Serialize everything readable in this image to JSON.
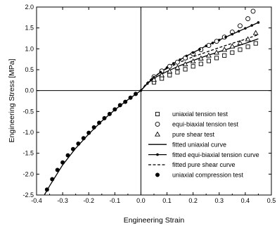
{
  "chart_data": {
    "type": "scatter",
    "title": "",
    "xlabel": "Engineering Strain",
    "ylabel": "Engineering Stress [MPa]",
    "xlim": [
      -0.4,
      0.5
    ],
    "ylim": [
      -2.5,
      2.0
    ],
    "xticks": [
      -0.4,
      -0.3,
      -0.2,
      -0.1,
      0.0,
      0.1,
      0.2,
      0.3,
      0.4,
      0.5
    ],
    "xtick_labels": [
      "-0.4",
      "-0.3",
      "-0.2",
      "-0.1",
      "0.0",
      "0.1",
      "0.2",
      "0.3",
      "0.4",
      "0.5"
    ],
    "yticks": [
      -2.5,
      -2.0,
      -1.5,
      -1.0,
      -0.5,
      0.0,
      0.5,
      1.0,
      1.5,
      2.0
    ],
    "ytick_labels": [
      "-2.5",
      "-2.0",
      "-1.5",
      "-1.0",
      "-0.5",
      "0.0",
      "0.5",
      "1.0",
      "1.5",
      "2.0"
    ],
    "grid": false,
    "legend_position": "bottom-right",
    "series": [
      {
        "name": "uniaxial tension test",
        "kind": "markers",
        "marker": "open-square",
        "color": "#000000",
        "x": [
          0.05,
          0.08,
          0.11,
          0.14,
          0.17,
          0.2,
          0.23,
          0.26,
          0.29,
          0.32,
          0.35,
          0.38,
          0.41,
          0.44
        ],
        "y": [
          0.2,
          0.29,
          0.37,
          0.44,
          0.51,
          0.58,
          0.64,
          0.71,
          0.78,
          0.84,
          0.91,
          0.98,
          1.05,
          1.13
        ]
      },
      {
        "name": "equi-biaxial tension test",
        "kind": "markers",
        "marker": "open-circle",
        "color": "#000000",
        "x": [
          0.05,
          0.08,
          0.11,
          0.14,
          0.17,
          0.2,
          0.23,
          0.26,
          0.29,
          0.32,
          0.35,
          0.38,
          0.41,
          0.43
        ],
        "y": [
          0.33,
          0.47,
          0.58,
          0.68,
          0.78,
          0.88,
          0.98,
          1.08,
          1.18,
          1.28,
          1.4,
          1.55,
          1.72,
          1.9
        ]
      },
      {
        "name": "pure shear test",
        "kind": "markers",
        "marker": "open-triangle",
        "color": "#000000",
        "x": [
          0.05,
          0.08,
          0.11,
          0.14,
          0.17,
          0.2,
          0.23,
          0.26,
          0.29,
          0.32,
          0.35,
          0.38,
          0.41,
          0.44
        ],
        "y": [
          0.26,
          0.37,
          0.46,
          0.55,
          0.63,
          0.7,
          0.77,
          0.84,
          0.91,
          0.98,
          1.06,
          1.14,
          1.23,
          1.38
        ]
      },
      {
        "name": "fitted uniaxial curve",
        "kind": "line",
        "line_style": "solid",
        "color": "#000000",
        "x": [
          0.0,
          0.02,
          0.05,
          0.1,
          0.15,
          0.2,
          0.25,
          0.3,
          0.35,
          0.4,
          0.45
        ],
        "y": [
          0.0,
          0.14,
          0.3,
          0.46,
          0.6,
          0.72,
          0.83,
          0.93,
          1.03,
          1.13,
          1.24
        ]
      },
      {
        "name": "fitted equi-biaxial tension curve",
        "kind": "line-markers",
        "line_style": "solid",
        "marker": "filled-dot",
        "color": "#000000",
        "x": [
          0.0,
          0.025,
          0.05,
          0.075,
          0.1,
          0.125,
          0.15,
          0.175,
          0.2,
          0.225,
          0.25,
          0.275,
          0.3,
          0.325,
          0.35,
          0.375,
          0.4,
          0.425,
          0.45
        ],
        "y": [
          0.0,
          0.17,
          0.32,
          0.44,
          0.55,
          0.65,
          0.74,
          0.83,
          0.91,
          0.99,
          1.07,
          1.14,
          1.21,
          1.28,
          1.35,
          1.42,
          1.49,
          1.56,
          1.63
        ]
      },
      {
        "name": "fitted pure shear curve",
        "kind": "line",
        "line_style": "dashed",
        "color": "#000000",
        "x": [
          0.0,
          0.02,
          0.05,
          0.1,
          0.15,
          0.2,
          0.25,
          0.3,
          0.35,
          0.4,
          0.45
        ],
        "y": [
          0.0,
          0.17,
          0.34,
          0.53,
          0.68,
          0.81,
          0.92,
          1.03,
          1.13,
          1.23,
          1.34
        ]
      },
      {
        "name": "uniaxial compression test",
        "kind": "markers",
        "marker": "filled-circle",
        "color": "#000000",
        "x": [
          -0.36,
          -0.34,
          -0.32,
          -0.3,
          -0.28,
          -0.26,
          -0.24,
          -0.22,
          -0.2,
          -0.18,
          -0.16,
          -0.14,
          -0.12,
          -0.1,
          -0.08,
          -0.06,
          -0.04,
          -0.02
        ],
        "y": [
          -2.37,
          -2.12,
          -1.9,
          -1.72,
          -1.55,
          -1.4,
          -1.27,
          -1.14,
          -1.01,
          -0.88,
          -0.77,
          -0.66,
          -0.56,
          -0.45,
          -0.35,
          -0.27,
          -0.17,
          -0.08
        ]
      },
      {
        "name": "",
        "kind": "line",
        "line_style": "solid",
        "color": "#000000",
        "x": [
          -0.37,
          -0.35,
          -0.3,
          -0.25,
          -0.2,
          -0.15,
          -0.1,
          -0.05,
          0.0
        ],
        "y": [
          -2.5,
          -2.28,
          -1.78,
          -1.38,
          -1.04,
          -0.73,
          -0.46,
          -0.22,
          0.0
        ]
      }
    ]
  }
}
